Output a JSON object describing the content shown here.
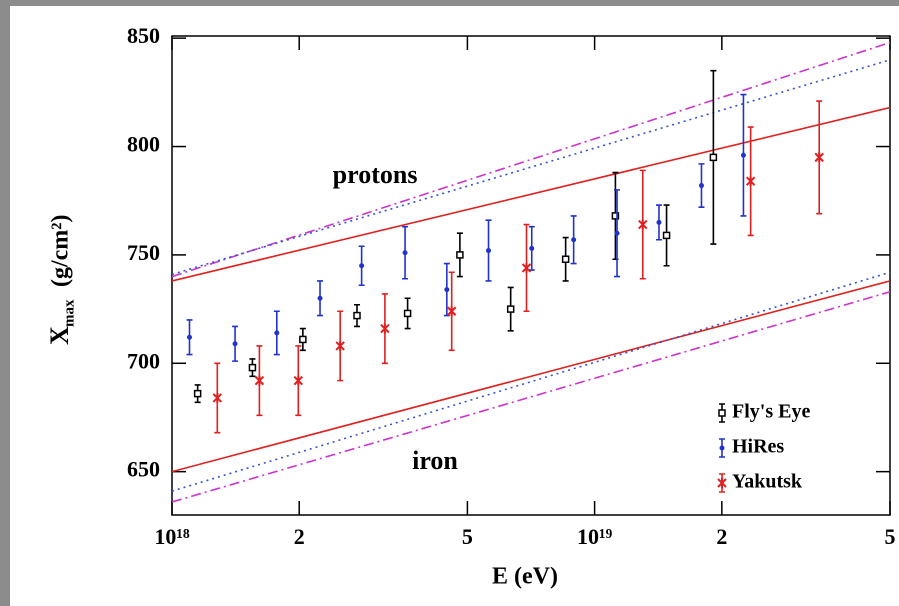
{
  "chart_data": {
    "type": "scatter",
    "xlabel": "E (eV)",
    "ylabel": "X",
    "ylabel_subscript": "max",
    "ylabel_unit": "(g/cm²)",
    "annotations": [
      {
        "text": "protons",
        "x": 2.4e+18,
        "y": 786
      },
      {
        "text": "iron",
        "x": 3.7e+18,
        "y": 654
      }
    ],
    "xscale": "log",
    "xlim": [
      1e+18,
      5e+19
    ],
    "ylim": [
      630,
      851
    ],
    "xticks": [
      {
        "value": 1e+18,
        "label": "10¹⁸"
      },
      {
        "value": 2e+18,
        "label": "2"
      },
      {
        "value": 5e+18,
        "label": "5"
      },
      {
        "value": 1e+19,
        "label": "10¹⁹"
      },
      {
        "value": 2e+19,
        "label": "2"
      },
      {
        "value": 5e+19,
        "label": "5"
      }
    ],
    "yticks": [
      650,
      700,
      750,
      800,
      850
    ],
    "grid": false,
    "legend": "lower right",
    "lines": [
      {
        "color": "#e02020",
        "dash": "solid",
        "x": [
          1e+18,
          5e+19
        ],
        "values": [
          738,
          818
        ]
      },
      {
        "color": "#cc33cc",
        "dash": "dashdot",
        "x": [
          1e+18,
          5e+19
        ],
        "values": [
          740,
          848
        ]
      },
      {
        "color": "#3355cc",
        "dash": "dotted",
        "x": [
          1e+18,
          5e+19
        ],
        "values": [
          741,
          840
        ]
      },
      {
        "color": "#e02020",
        "dash": "solid",
        "x": [
          1e+18,
          5e+19
        ],
        "values": [
          650,
          738
        ]
      },
      {
        "color": "#cc33cc",
        "dash": "dashdot",
        "x": [
          1e+18,
          5e+19
        ],
        "values": [
          636,
          733
        ]
      },
      {
        "color": "#3355cc",
        "dash": "dotted",
        "x": [
          1e+18,
          5e+19
        ],
        "values": [
          641,
          742
        ]
      }
    ],
    "series": [
      {
        "name": "Fly's Eye",
        "color": "#000000",
        "marker": "square",
        "x": [
          1.15e+18,
          1.55e+18,
          2.04e+18,
          2.74e+18,
          3.61e+18,
          4.8e+18,
          6.33e+18,
          8.54e+18,
          1.12e+19,
          1.48e+19,
          1.91e+19
        ],
        "values": [
          686,
          698,
          711,
          722,
          723,
          750,
          725,
          748,
          768,
          759,
          795
        ],
        "errors": [
          4,
          4,
          5,
          5,
          7,
          10,
          10,
          10,
          20,
          14,
          40
        ]
      },
      {
        "name": "HiRes",
        "color": "#2233cc",
        "marker": "dot",
        "x": [
          1.1e+18,
          1.41e+18,
          1.77e+18,
          2.24e+18,
          2.81e+18,
          3.56e+18,
          4.47e+18,
          5.61e+18,
          7.1e+18,
          8.92e+18,
          1.13e+19,
          1.42e+19,
          1.79e+19,
          2.25e+19
        ],
        "values": [
          712,
          709,
          714,
          730,
          745,
          751,
          734,
          752,
          753,
          757,
          760,
          765,
          782,
          796
        ],
        "errors": [
          8,
          8,
          10,
          8,
          9,
          12,
          12,
          14,
          10,
          11,
          20,
          8,
          10,
          28
        ]
      },
      {
        "name": "Yakutsk",
        "color": "#e02020",
        "marker": "star",
        "x": [
          1.28e+18,
          1.61e+18,
          1.99e+18,
          2.5e+18,
          3.19e+18,
          4.59e+18,
          6.9e+18,
          1.3e+19,
          2.34e+19,
          3.4e+19
        ],
        "values": [
          684,
          692,
          692,
          708,
          716,
          724,
          744,
          764,
          784,
          795
        ],
        "errors": [
          16,
          16,
          16,
          16,
          16,
          18,
          20,
          25,
          25,
          26
        ]
      }
    ]
  }
}
